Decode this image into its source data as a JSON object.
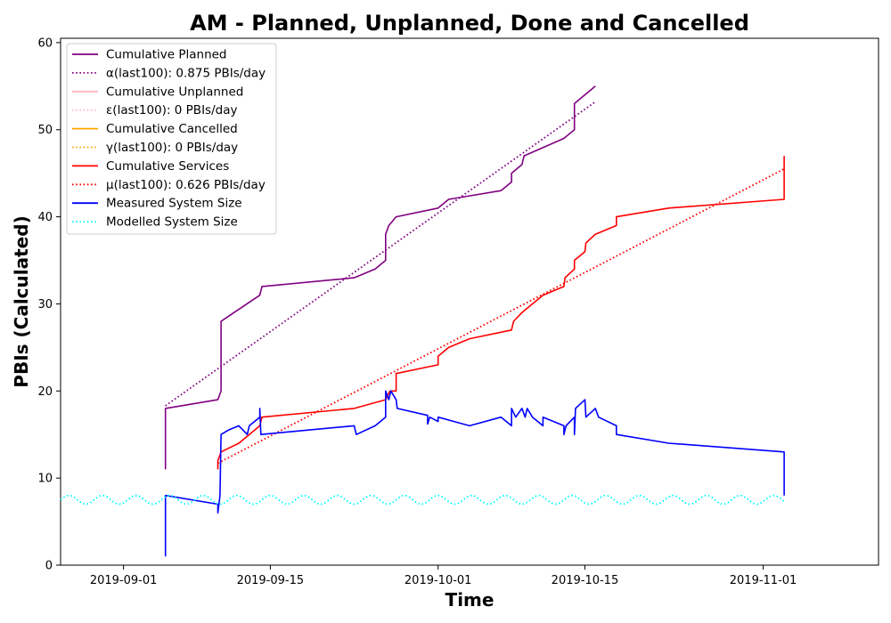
{
  "chart_data": {
    "type": "line",
    "title": "AM - Planned, Unplanned, Done  and Cancelled",
    "xlabel": "Time",
    "ylabel": "PBIs (Calculated)",
    "x_range": [
      "2019-08-26",
      "2019-11-12"
    ],
    "ylim": [
      0,
      60.5
    ],
    "x_ticks": [
      "2019-09-01",
      "2019-09-15",
      "2019-10-01",
      "2019-10-15",
      "2019-11-01"
    ],
    "y_ticks": [
      0,
      10,
      20,
      30,
      40,
      50,
      60
    ],
    "grid": false,
    "legend_position": "top-left",
    "series": [
      {
        "name": "Cumulative Planned",
        "color": "#800080",
        "style": "solid",
        "points": [
          [
            "2019-09-05",
            11
          ],
          [
            "2019-09-05",
            18
          ],
          [
            "2019-09-10",
            19
          ],
          [
            "2019-09-10.3",
            20
          ],
          [
            "2019-09-10.3",
            28
          ],
          [
            "2019-09-14",
            31
          ],
          [
            "2019-09-14.2",
            32
          ],
          [
            "2019-09-23",
            33
          ],
          [
            "2019-09-25",
            34
          ],
          [
            "2019-09-26",
            35
          ],
          [
            "2019-09-26",
            38
          ],
          [
            "2019-09-26.3",
            39
          ],
          [
            "2019-09-27",
            40
          ],
          [
            "2019-10-01",
            41
          ],
          [
            "2019-10-02",
            42
          ],
          [
            "2019-10-07",
            43
          ],
          [
            "2019-10-08",
            44
          ],
          [
            "2019-10-08",
            45
          ],
          [
            "2019-10-09",
            46
          ],
          [
            "2019-10-09.2",
            47
          ],
          [
            "2019-10-13",
            49
          ],
          [
            "2019-10-14",
            50
          ],
          [
            "2019-10-14",
            53
          ],
          [
            "2019-10-16",
            55
          ]
        ]
      },
      {
        "name": "α(last100): 0.875 PBIs/day",
        "color": "#800080",
        "style": "dotted",
        "points": [
          [
            "2019-09-05",
            18.3
          ],
          [
            "2019-10-16",
            53.2
          ]
        ]
      },
      {
        "name": "Cumulative Unplanned",
        "color": "#ffb6c1",
        "style": "solid",
        "points": []
      },
      {
        "name": "ε(last100): 0 PBIs/day",
        "color": "#ffb6c1",
        "style": "dotted",
        "points": []
      },
      {
        "name": "Cumulative Cancelled",
        "color": "#ffa500",
        "style": "solid",
        "points": []
      },
      {
        "name": "γ(last100): 0 PBIs/day",
        "color": "#ffa500",
        "style": "dotted",
        "points": []
      },
      {
        "name": "Cumulative Services",
        "color": "#ff0000",
        "style": "solid",
        "points": [
          [
            "2019-09-10",
            11
          ],
          [
            "2019-09-10",
            12
          ],
          [
            "2019-09-10.3",
            13
          ],
          [
            "2019-09-12",
            14
          ],
          [
            "2019-09-13",
            15
          ],
          [
            "2019-09-14",
            16
          ],
          [
            "2019-09-14.2",
            17
          ],
          [
            "2019-09-23",
            18
          ],
          [
            "2019-09-26",
            19
          ],
          [
            "2019-09-26.4",
            20
          ],
          [
            "2019-09-27",
            20
          ],
          [
            "2019-09-27",
            22
          ],
          [
            "2019-10-01",
            23
          ],
          [
            "2019-10-01",
            24
          ],
          [
            "2019-10-02",
            25
          ],
          [
            "2019-10-04",
            26
          ],
          [
            "2019-10-08",
            27
          ],
          [
            "2019-10-08.2",
            28
          ],
          [
            "2019-10-09",
            29
          ],
          [
            "2019-10-10",
            30
          ],
          [
            "2019-10-11",
            31
          ],
          [
            "2019-10-13",
            32
          ],
          [
            "2019-10-13.1",
            33
          ],
          [
            "2019-10-14",
            34
          ],
          [
            "2019-10-14",
            35
          ],
          [
            "2019-10-15",
            36
          ],
          [
            "2019-10-15.1",
            37
          ],
          [
            "2019-10-16",
            38
          ],
          [
            "2019-10-18",
            39
          ],
          [
            "2019-10-18",
            40
          ],
          [
            "2019-10-23",
            41
          ],
          [
            "2019-11-03",
            42
          ],
          [
            "2019-11-03",
            47
          ]
        ]
      },
      {
        "name": "μ(last100): 0.626 PBIs/day",
        "color": "#ff0000",
        "style": "dotted",
        "points": [
          [
            "2019-09-10",
            11.7
          ],
          [
            "2019-11-03",
            45.5
          ]
        ]
      },
      {
        "name": "Measured System Size",
        "color": "#0000ff",
        "style": "solid",
        "points": [
          [
            "2019-09-05",
            1
          ],
          [
            "2019-09-05",
            8
          ],
          [
            "2019-09-10",
            7
          ],
          [
            "2019-09-10",
            6
          ],
          [
            "2019-09-10.2",
            8
          ],
          [
            "2019-09-10.3",
            15
          ],
          [
            "2019-09-11",
            15.5
          ],
          [
            "2019-09-12",
            16
          ],
          [
            "2019-09-12.8",
            15
          ],
          [
            "2019-09-13",
            16
          ],
          [
            "2019-09-14",
            17
          ],
          [
            "2019-09-14",
            18
          ],
          [
            "2019-09-14.1",
            15
          ],
          [
            "2019-09-23",
            16
          ],
          [
            "2019-09-23.2",
            15
          ],
          [
            "2019-09-25",
            16
          ],
          [
            "2019-09-26",
            17
          ],
          [
            "2019-09-26",
            20
          ],
          [
            "2019-09-26.3",
            19
          ],
          [
            "2019-09-26.5",
            20
          ],
          [
            "2019-09-27",
            19
          ],
          [
            "2019-09-27.1",
            18
          ],
          [
            "2019-09-30",
            17.2
          ],
          [
            "2019-09-30",
            16.2
          ],
          [
            "2019-09-30.2",
            17
          ],
          [
            "2019-10-01",
            16.5
          ],
          [
            "2019-10-01",
            17
          ],
          [
            "2019-10-04",
            16
          ],
          [
            "2019-10-07",
            17
          ],
          [
            "2019-10-08",
            16
          ],
          [
            "2019-10-08",
            18
          ],
          [
            "2019-10-08.4",
            17
          ],
          [
            "2019-10-09",
            18
          ],
          [
            "2019-10-09.3",
            17
          ],
          [
            "2019-10-09.5",
            18
          ],
          [
            "2019-10-10",
            17
          ],
          [
            "2019-10-11",
            16
          ],
          [
            "2019-10-11",
            17
          ],
          [
            "2019-10-13",
            16
          ],
          [
            "2019-10-13",
            15
          ],
          [
            "2019-10-13.2",
            16
          ],
          [
            "2019-10-14",
            17
          ],
          [
            "2019-10-14",
            15
          ],
          [
            "2019-10-14.1",
            18
          ],
          [
            "2019-10-15",
            19
          ],
          [
            "2019-10-15.1",
            17
          ],
          [
            "2019-10-16",
            18
          ],
          [
            "2019-10-16.3",
            17
          ],
          [
            "2019-10-18",
            16
          ],
          [
            "2019-10-18",
            15
          ],
          [
            "2019-10-23",
            14
          ],
          [
            "2019-11-03",
            13
          ],
          [
            "2019-11-03",
            8
          ]
        ]
      },
      {
        "name": "Modelled System Size",
        "color": "#00ffff",
        "style": "dotted",
        "wave": {
          "start": "2019-08-26",
          "end": "2019-11-03",
          "center": 7.5,
          "amplitude": 0.5,
          "period_days": 3.2
        }
      }
    ]
  }
}
